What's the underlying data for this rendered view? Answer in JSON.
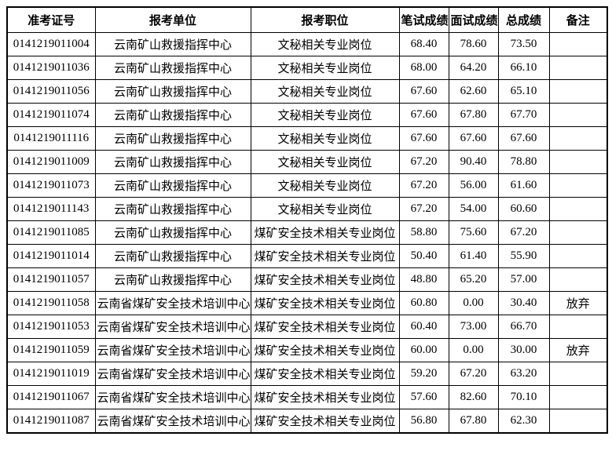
{
  "table": {
    "headers": [
      "准考证号",
      "报考单位",
      "报考职位",
      "笔试成绩",
      "面试成绩",
      "总成绩",
      "备注"
    ],
    "rows": [
      [
        "0141219011004",
        "云南矿山救援指挥中心",
        "文秘相关专业岗位",
        "68.40",
        "78.60",
        "73.50",
        ""
      ],
      [
        "0141219011036",
        "云南矿山救援指挥中心",
        "文秘相关专业岗位",
        "68.00",
        "64.20",
        "66.10",
        ""
      ],
      [
        "0141219011056",
        "云南矿山救援指挥中心",
        "文秘相关专业岗位",
        "67.60",
        "62.60",
        "65.10",
        ""
      ],
      [
        "0141219011074",
        "云南矿山救援指挥中心",
        "文秘相关专业岗位",
        "67.60",
        "67.80",
        "67.70",
        ""
      ],
      [
        "0141219011116",
        "云南矿山救援指挥中心",
        "文秘相关专业岗位",
        "67.60",
        "67.60",
        "67.60",
        ""
      ],
      [
        "0141219011009",
        "云南矿山救援指挥中心",
        "文秘相关专业岗位",
        "67.20",
        "90.40",
        "78.80",
        ""
      ],
      [
        "0141219011073",
        "云南矿山救援指挥中心",
        "文秘相关专业岗位",
        "67.20",
        "56.00",
        "61.60",
        ""
      ],
      [
        "0141219011143",
        "云南矿山救援指挥中心",
        "文秘相关专业岗位",
        "67.20",
        "54.00",
        "60.60",
        ""
      ],
      [
        "0141219011085",
        "云南矿山救援指挥中心",
        "煤矿安全技术相关专业岗位",
        "58.80",
        "75.60",
        "67.20",
        ""
      ],
      [
        "0141219011014",
        "云南矿山救援指挥中心",
        "煤矿安全技术相关专业岗位",
        "50.40",
        "61.40",
        "55.90",
        ""
      ],
      [
        "0141219011057",
        "云南矿山救援指挥中心",
        "煤矿安全技术相关专业岗位",
        "48.80",
        "65.20",
        "57.00",
        ""
      ],
      [
        "0141219011058",
        "云南省煤矿安全技术培训中心",
        "煤矿安全技术相关专业岗位",
        "60.80",
        "0.00",
        "30.40",
        "放弃"
      ],
      [
        "0141219011053",
        "云南省煤矿安全技术培训中心",
        "煤矿安全技术相关专业岗位",
        "60.40",
        "73.00",
        "66.70",
        ""
      ],
      [
        "0141219011059",
        "云南省煤矿安全技术培训中心",
        "煤矿安全技术相关专业岗位",
        "60.00",
        "0.00",
        "30.00",
        "放弃"
      ],
      [
        "0141219011019",
        "云南省煤矿安全技术培训中心",
        "煤矿安全技术相关专业岗位",
        "59.20",
        "67.20",
        "63.20",
        ""
      ],
      [
        "0141219011067",
        "云南省煤矿安全技术培训中心",
        "煤矿安全技术相关专业岗位",
        "57.60",
        "82.60",
        "70.10",
        ""
      ],
      [
        "0141219011087",
        "云南省煤矿安全技术培训中心",
        "煤矿安全技术相关专业岗位",
        "56.80",
        "67.80",
        "62.30",
        ""
      ]
    ]
  }
}
